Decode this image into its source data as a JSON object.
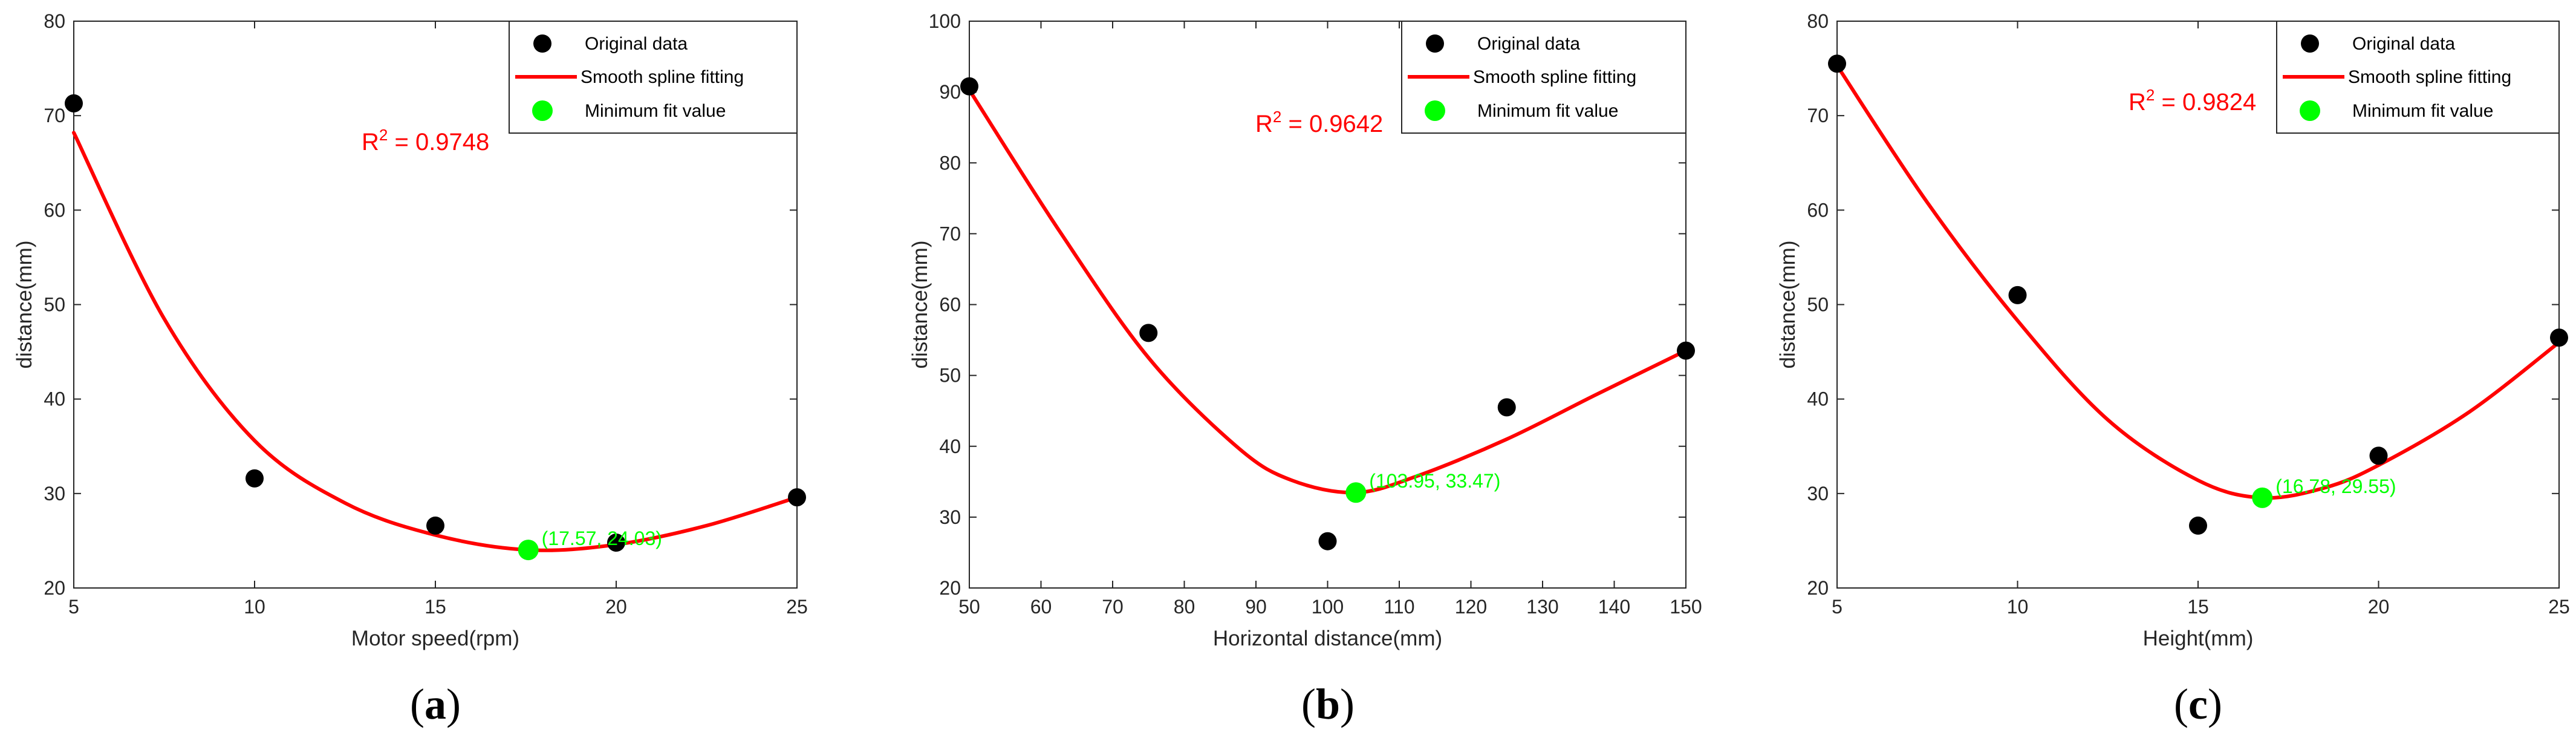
{
  "colors": {
    "data_point": "#000000",
    "fit_line": "#ff0000",
    "minimum_point": "#00ff00",
    "r2_text": "#ff0000",
    "axis": "#262626"
  },
  "legend": {
    "original": "Original data",
    "fit": "Smooth spline fitting",
    "minimum": "Minimum fit value"
  },
  "chart_data": [
    {
      "type": "scatter",
      "panel": "a",
      "caption_letter": "a",
      "xlabel": "Motor speed(rpm)",
      "ylabel": "distance(mm)",
      "xlim": [
        5,
        25
      ],
      "ylim": [
        20,
        80
      ],
      "xticks": [
        5,
        10,
        15,
        20,
        25
      ],
      "yticks": [
        20,
        30,
        40,
        50,
        60,
        70,
        80
      ],
      "r2_prefix": "R",
      "r2_power": "2",
      "r2_value": " = 0.9748",
      "original_data": {
        "x": [
          5,
          10,
          15,
          20,
          25
        ],
        "y": [
          71.3,
          31.6,
          26.6,
          24.8,
          29.6
        ]
      },
      "fit_curve": {
        "x": [
          5,
          7.5,
          10,
          12.5,
          15,
          17.57,
          20,
          22.5,
          25
        ],
        "y": [
          68.2,
          48.5,
          35.6,
          29.0,
          25.6,
          24.03,
          24.6,
          26.6,
          29.6
        ]
      },
      "minimum": {
        "x": 17.57,
        "y": 24.03,
        "label": "(17.57, 24.03)"
      }
    },
    {
      "type": "scatter",
      "panel": "b",
      "caption_letter": "b",
      "xlabel": "Horizontal distance(mm)",
      "ylabel": "distance(mm)",
      "xlim": [
        50,
        150
      ],
      "ylim": [
        20,
        100
      ],
      "xticks": [
        50,
        60,
        70,
        80,
        90,
        100,
        110,
        120,
        130,
        140,
        150
      ],
      "yticks": [
        20,
        30,
        40,
        50,
        60,
        70,
        80,
        90,
        100
      ],
      "r2_prefix": "R",
      "r2_power": "2",
      "r2_value": " = 0.9642",
      "original_data": {
        "x": [
          50,
          75,
          100,
          125,
          150
        ],
        "y": [
          90.8,
          56,
          26.6,
          45.5,
          53.5
        ]
      },
      "fit_curve": {
        "x": [
          50,
          62.5,
          75,
          87.5,
          95,
          103.95,
          112.5,
          125,
          137.5,
          150
        ],
        "y": [
          90.3,
          70.5,
          52.5,
          39.8,
          35.2,
          33.47,
          35.8,
          41.0,
          47.3,
          53.5
        ]
      },
      "minimum": {
        "x": 103.95,
        "y": 33.47,
        "label": "(103.95, 33.47)"
      }
    },
    {
      "type": "scatter",
      "panel": "c",
      "caption_letter": "c",
      "xlabel": "Height(mm)",
      "ylabel": "distance(mm)",
      "xlim": [
        5,
        25
      ],
      "ylim": [
        20,
        80
      ],
      "xticks": [
        5,
        10,
        15,
        20,
        25
      ],
      "yticks": [
        20,
        30,
        40,
        50,
        60,
        70,
        80
      ],
      "r2_prefix": "R",
      "r2_power": "2",
      "r2_value": " = 0.9824",
      "original_data": {
        "x": [
          5,
          10,
          15,
          20,
          25
        ],
        "y": [
          75.5,
          51,
          26.6,
          34,
          46.5
        ]
      },
      "fit_curve": {
        "x": [
          5,
          7.5,
          10,
          12.5,
          15,
          16.78,
          18.5,
          20,
          22.5,
          25
        ],
        "y": [
          75.3,
          60.8,
          48.3,
          37.8,
          31.4,
          29.55,
          30.6,
          33.0,
          38.6,
          46.0
        ]
      },
      "minimum": {
        "x": 16.78,
        "y": 29.55,
        "label": "(16.78, 29.55)"
      }
    }
  ]
}
